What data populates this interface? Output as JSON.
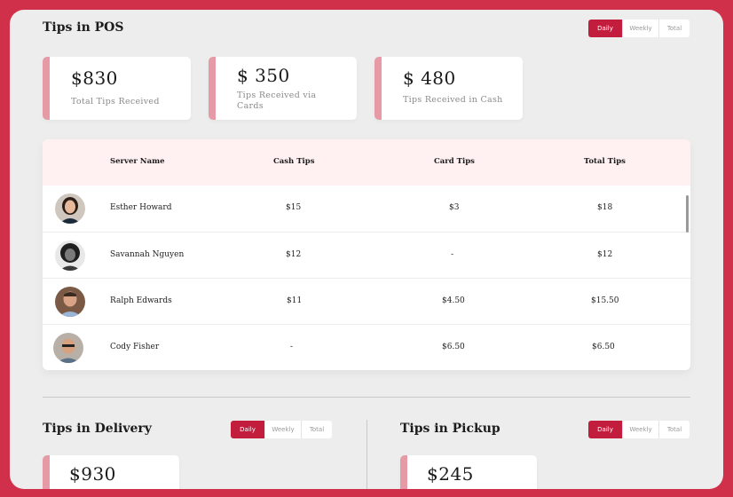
{
  "pos": {
    "title": "Tips in POS",
    "filters": [
      "Daily",
      "Weekly",
      "Total"
    ],
    "active_filter": "Daily",
    "cards": [
      {
        "amount": "$830",
        "label": "Total Tips Received"
      },
      {
        "amount": "$ 350",
        "label": "Tips Received via Cards"
      },
      {
        "amount": "$ 480",
        "label": "Tips Received in Cash"
      }
    ],
    "table": {
      "headers": {
        "server": "Server Name",
        "cash": "Cash Tips",
        "card": "Card Tips",
        "total": "Total Tips"
      },
      "rows": [
        {
          "name": "Esther Howard",
          "cash": "$15",
          "card": "$3",
          "total": "$18"
        },
        {
          "name": "Savannah Nguyen",
          "cash": "$12",
          "card": "-",
          "total": "$12"
        },
        {
          "name": "Ralph Edwards",
          "cash": "$11",
          "card": "$4.50",
          "total": "$15.50"
        },
        {
          "name": "Cody Fisher",
          "cash": "-",
          "card": "$6.50",
          "total": "$6.50"
        }
      ]
    }
  },
  "delivery": {
    "title": "Tips in Delivery",
    "filters": [
      "Daily",
      "Weekly",
      "Total"
    ],
    "card_amount": "$930"
  },
  "pickup": {
    "title": "Tips in Pickup",
    "filters": [
      "Daily",
      "Weekly",
      "Total"
    ],
    "card_amount": "$245"
  },
  "colors": {
    "accent": "#c21d3d",
    "border": "#d0304a",
    "card_accent": "#e69aa5",
    "header_bg": "#fff0f2"
  }
}
